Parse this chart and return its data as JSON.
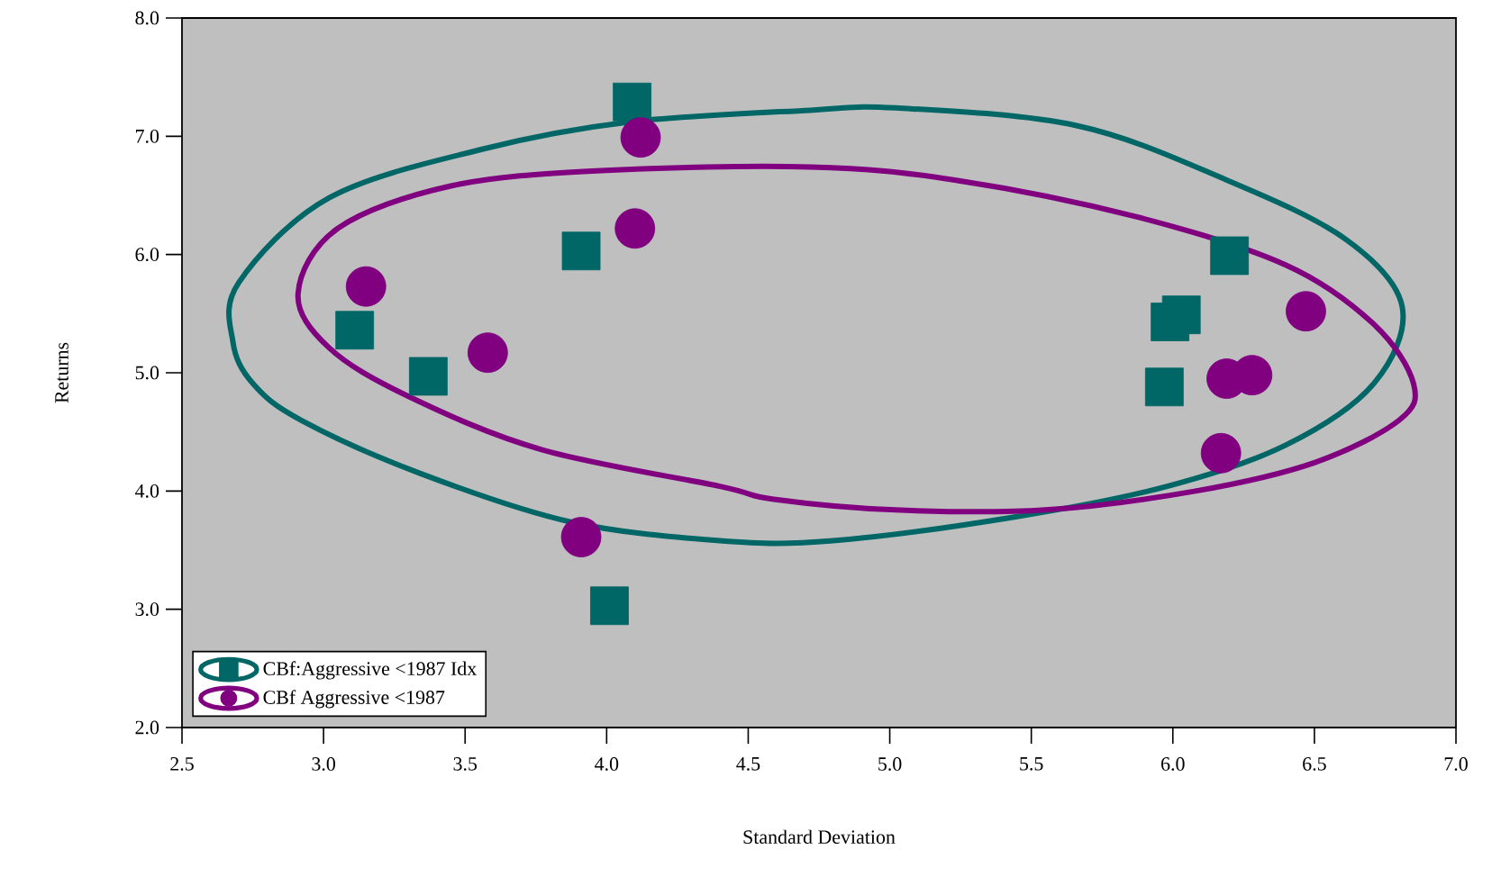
{
  "chart_data": {
    "type": "scatter",
    "xlabel": "Standard Deviation",
    "ylabel": "Returns",
    "xlim": [
      2.5,
      7.0
    ],
    "ylim": [
      2.0,
      8.0
    ],
    "xticks": [
      {
        "value": 2.5,
        "label": "2.5"
      },
      {
        "value": 3.0,
        "label": "3.0"
      },
      {
        "value": 3.5,
        "label": "3.5"
      },
      {
        "value": 4.0,
        "label": "4.0"
      },
      {
        "value": 4.5,
        "label": "4.5"
      },
      {
        "value": 5.0,
        "label": "5.0"
      },
      {
        "value": 5.5,
        "label": "5.5"
      },
      {
        "value": 6.0,
        "label": "6.0"
      },
      {
        "value": 6.5,
        "label": "6.5"
      },
      {
        "value": 7.0,
        "label": "7.0"
      }
    ],
    "yticks": [
      {
        "value": 2,
        "label": "2.0"
      },
      {
        "value": 3,
        "label": "3.0"
      },
      {
        "value": 4,
        "label": "4.0"
      },
      {
        "value": 5,
        "label": "5.0"
      },
      {
        "value": 6,
        "label": "6.0"
      },
      {
        "value": 7,
        "label": "7.0"
      },
      {
        "value": 8,
        "label": "8.0"
      }
    ],
    "legend": "bottom left",
    "series": [
      {
        "name": "CBf:Aggressive <1987 Idx",
        "type": "scatter",
        "marker": "square",
        "color": "#006666",
        "x": [
          4.09,
          3.91,
          3.11,
          3.37,
          6.2,
          6.03,
          5.99,
          5.97,
          4.01
        ],
        "values": [
          7.29,
          6.03,
          5.36,
          4.97,
          5.99,
          5.49,
          5.43,
          4.88,
          3.03
        ]
      },
      {
        "name": "CBf Aggressive <1987",
        "type": "scatter",
        "marker": "circle",
        "color": "#800080",
        "x": [
          4.12,
          4.1,
          3.15,
          3.58,
          3.91,
          6.47,
          6.19,
          6.28,
          6.17
        ],
        "values": [
          6.99,
          6.22,
          5.73,
          5.17,
          3.61,
          5.52,
          4.95,
          4.98,
          4.32
        ]
      }
    ]
  }
}
